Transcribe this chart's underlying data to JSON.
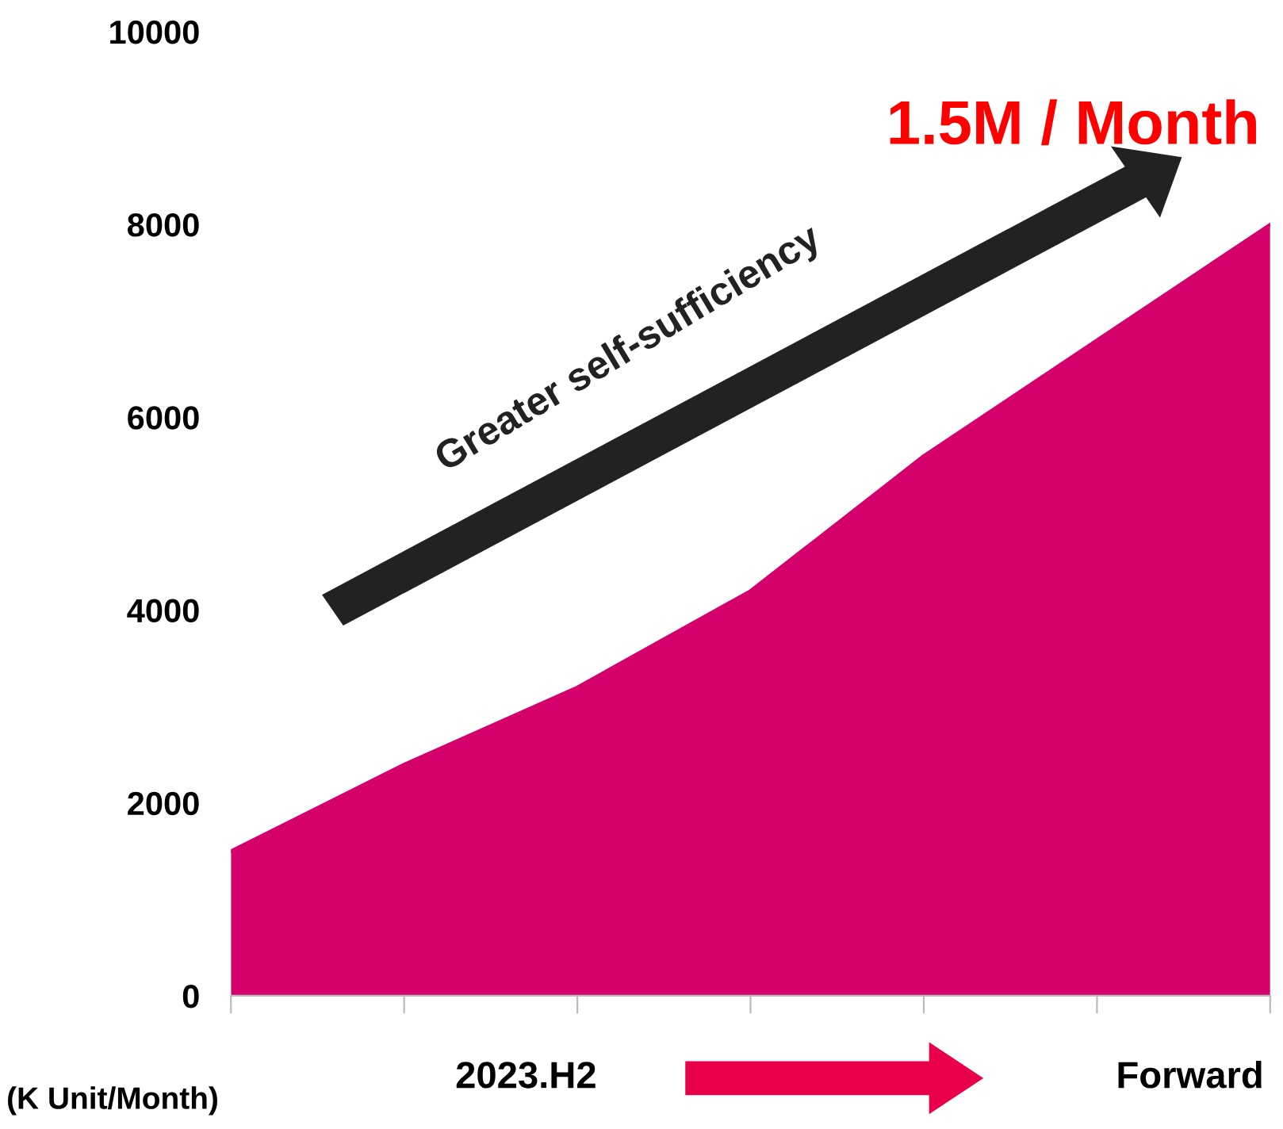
{
  "chart_data": {
    "type": "area",
    "ylabel": "(K Unit/Month)",
    "categories": [
      null,
      null,
      null,
      null,
      null,
      null,
      null
    ],
    "series": [
      {
        "color": "#d4006c",
        "values": [
          1500,
          2400,
          3200,
          4200,
          5600,
          6800,
          8000
        ]
      }
    ],
    "ylim": [
      0,
      10000
    ],
    "yticks": [
      0,
      2000,
      4000,
      6000,
      8000,
      10000
    ],
    "tick_labels": "y",
    "grid": false,
    "legend": false,
    "annotations": [
      "1.5M / Month",
      "Greater self-sufficiency",
      "2023.H2",
      "Forward"
    ]
  }
}
